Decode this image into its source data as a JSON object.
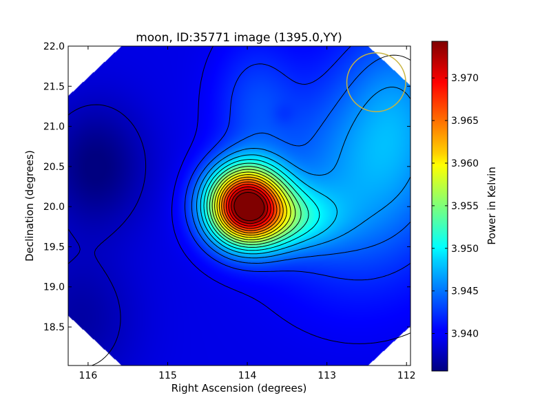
{
  "chart_data": {
    "type": "heatmap",
    "title": "moon, ID:35771 image (1395.0,YY)",
    "xlabel": "Right Ascension (degrees)",
    "ylabel": "Declination (degrees)",
    "xlim": [
      116.25,
      111.95
    ],
    "ylim": [
      18.02,
      22.0
    ],
    "x_reversed": true,
    "x_ticks": [
      116,
      115,
      114,
      113,
      112
    ],
    "x_tick_labels": [
      "116",
      "115",
      "114",
      "113",
      "112"
    ],
    "y_ticks": [
      18.5,
      19.0,
      19.5,
      20.0,
      20.5,
      21.0,
      21.5,
      22.0
    ],
    "y_tick_labels": [
      "18.5",
      "19.0",
      "19.5",
      "20.0",
      "20.5",
      "21.0",
      "21.5",
      "22.0"
    ],
    "colormap": "jet",
    "colorbar": {
      "label": "Power in Kelvin",
      "range": [
        3.9356,
        3.9743
      ],
      "ticks": [
        3.94,
        3.945,
        3.95,
        3.955,
        3.96,
        3.965,
        3.97
      ],
      "tick_labels": [
        "3.940",
        "3.945",
        "3.950",
        "3.955",
        "3.960",
        "3.965",
        "3.970"
      ]
    },
    "peak": {
      "ra": 114.02,
      "dec": 20.02,
      "value": 3.974
    },
    "contours": true,
    "beam_circle": {
      "ra": 112.38,
      "dec": 21.55,
      "radius_deg": 0.37,
      "color": "#c8b440"
    },
    "grid": false
  }
}
